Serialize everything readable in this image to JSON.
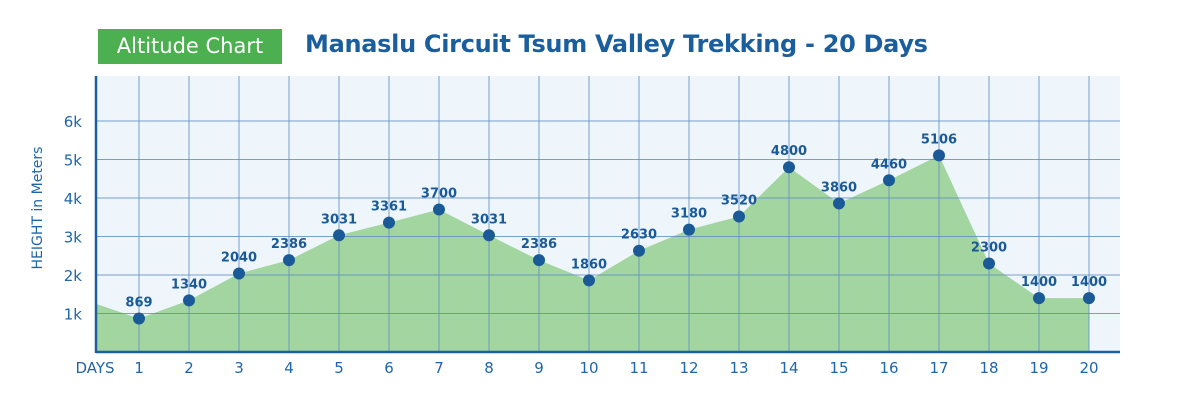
{
  "header": {
    "badge": "Altitude Chart",
    "title": "Manaslu Circuit Tsum Valley Trekking - 20 Days"
  },
  "chart_data": {
    "type": "area",
    "title": "Manaslu Circuit Tsum Valley Trekking - 20 Days",
    "xlabel": "DAYS",
    "ylabel": "HEIGHT in Meters",
    "categories": [
      "1",
      "2",
      "3",
      "4",
      "5",
      "6",
      "7",
      "8",
      "9",
      "10",
      "11",
      "12",
      "13",
      "14",
      "15",
      "16",
      "17",
      "18",
      "19",
      "20"
    ],
    "values": [
      869,
      1340,
      2040,
      2386,
      3031,
      3361,
      3700,
      3031,
      2386,
      1860,
      2630,
      3180,
      3520,
      4800,
      3860,
      4460,
      5106,
      2300,
      1400,
      1400
    ],
    "y_ticks": [
      "1k",
      "2k",
      "3k",
      "4k",
      "5k",
      "6k"
    ],
    "ylim": [
      0,
      6000
    ],
    "grid": true,
    "colors": {
      "fill": "#a3d5a0",
      "point": "#1a5a96",
      "grid": "#5b8cc1",
      "background": "#eef5fb",
      "title": "#1a5e9e",
      "badge": "#4caf50"
    }
  }
}
